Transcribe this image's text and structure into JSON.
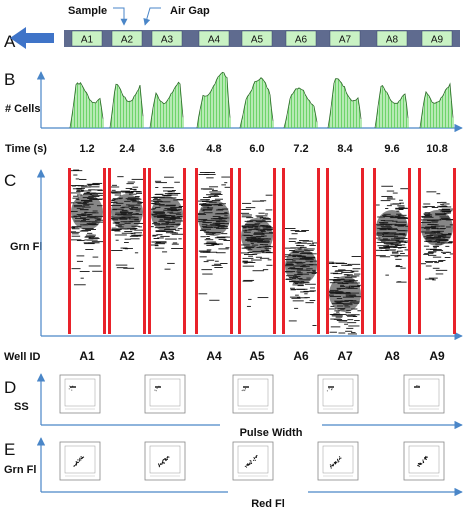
{
  "panels": {
    "A": {
      "letter": "A",
      "sample_label": "Sample",
      "air_gap_label": "Air Gap",
      "wells": [
        "A1",
        "A2",
        "A3",
        "A4",
        "A5",
        "A6",
        "A7",
        "A8",
        "A9"
      ],
      "colors": {
        "tube": "#5f6b8f",
        "plug": "#c9f2c4",
        "arrow": "#3f74c8"
      }
    },
    "B": {
      "letter": "B",
      "ylabel": "# Cells",
      "time_label": "Time (s)",
      "times": [
        "1.2",
        "2.4",
        "3.6",
        "4.8",
        "6.0",
        "7.2",
        "8.4",
        "9.6",
        "10.8"
      ],
      "colors": {
        "bars": "#5fd05a",
        "axis": "#4a86c8"
      }
    },
    "C": {
      "letter": "C",
      "ylabel": "Grn Fl",
      "well_id_label": "Well ID",
      "wells": [
        "A1",
        "A2",
        "A3",
        "A4",
        "A5",
        "A6",
        "A7",
        "A8",
        "A9"
      ],
      "colors": {
        "gate": "#e8222a",
        "events": "#111111"
      }
    },
    "D": {
      "letter": "D",
      "ylabel": "SS",
      "xlabel": "Pulse Width"
    },
    "E": {
      "letter": "E",
      "ylabel": "Grn Fl",
      "xlabel": "Red Fl"
    }
  }
}
